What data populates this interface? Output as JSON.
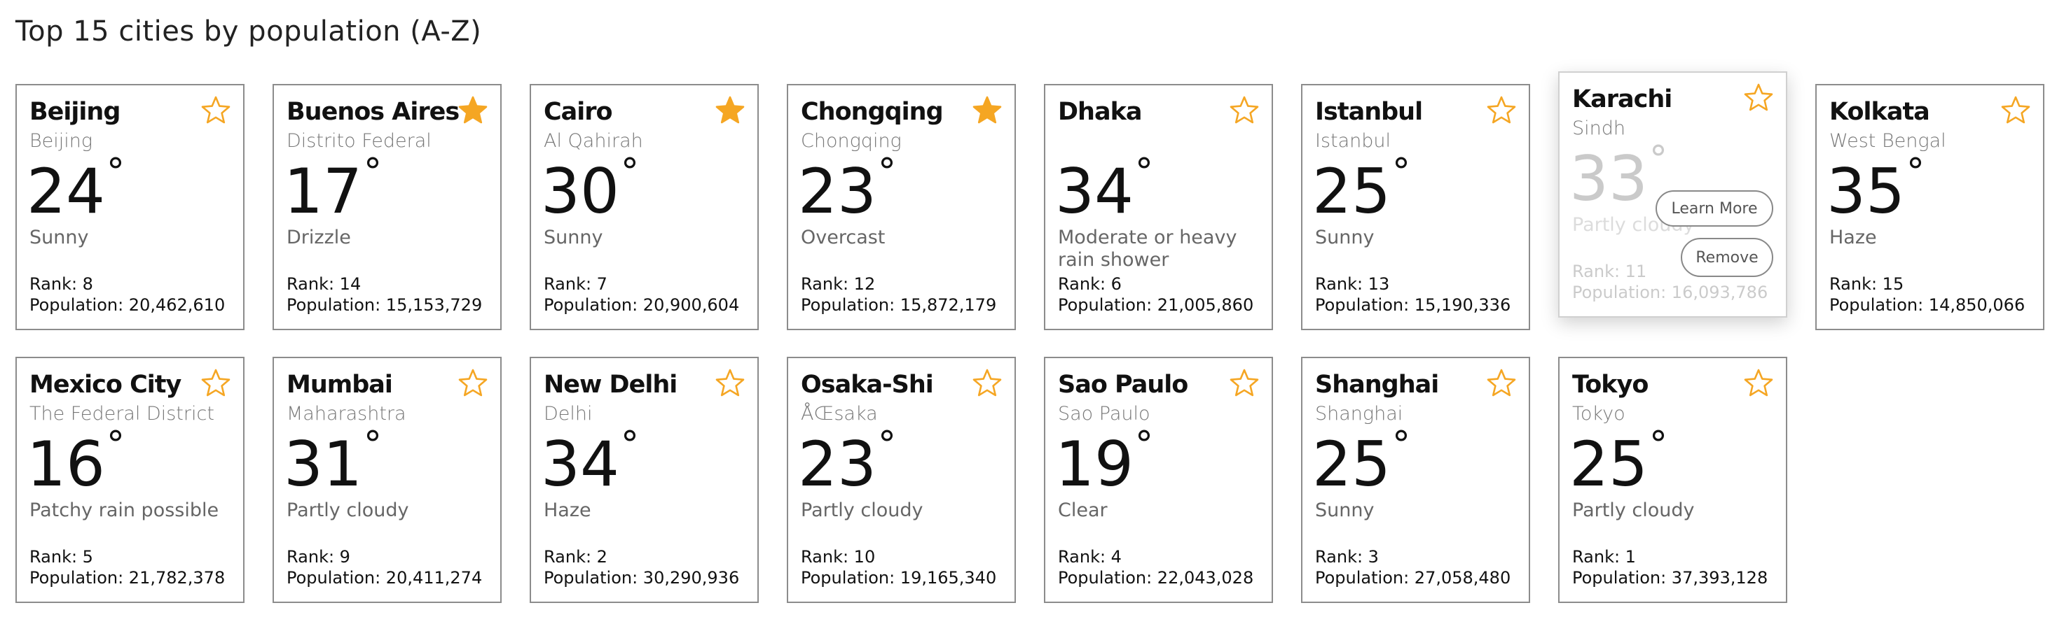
{
  "page": {
    "title": "Top 15 cities by population (A-Z)"
  },
  "colors": {
    "star": "#f5a623",
    "border": "#8c8c8c",
    "muted": "#777777"
  },
  "labels": {
    "rank_prefix": "Rank:",
    "population_prefix": "Population:",
    "degree": "°",
    "learn_more": "Learn More",
    "remove": "Remove"
  },
  "cities": [
    {
      "name": "Beijing",
      "region": "Beijing",
      "temp": "24",
      "condition": "Sunny",
      "rank": "Rank: 8",
      "population": "Population: 20,462,610",
      "favorite": false
    },
    {
      "name": "Buenos Aires",
      "region": "Distrito Federal",
      "temp": "17",
      "condition": "Drizzle",
      "rank": "Rank: 14",
      "population": "Population: 15,153,729",
      "favorite": true
    },
    {
      "name": "Cairo",
      "region": "Al Qahirah",
      "temp": "30",
      "condition": "Sunny",
      "rank": "Rank: 7",
      "population": "Population: 20,900,604",
      "favorite": true
    },
    {
      "name": "Chongqing",
      "region": "Chongqing",
      "temp": "23",
      "condition": "Overcast",
      "rank": "Rank: 12",
      "population": "Population: 15,872,179",
      "favorite": true
    },
    {
      "name": "Dhaka",
      "region": "",
      "temp": "34",
      "condition": "Moderate or heavy rain shower",
      "rank": "Rank: 6",
      "population": "Population: 21,005,860",
      "favorite": false
    },
    {
      "name": "Istanbul",
      "region": "Istanbul",
      "temp": "25",
      "condition": "Sunny",
      "rank": "Rank: 13",
      "population": "Population: 15,190,336",
      "favorite": false
    },
    {
      "name": "Karachi",
      "region": "Sindh",
      "temp": "33",
      "condition": "Partly cloudy",
      "rank": "Rank: 11",
      "population": "Population: 16,093,786",
      "favorite": false,
      "hovered": true
    },
    {
      "name": "Kolkata",
      "region": "West Bengal",
      "temp": "35",
      "condition": "Haze",
      "rank": "Rank: 15",
      "population": "Population: 14,850,066",
      "favorite": false
    },
    {
      "name": "Mexico City",
      "region": "The Federal District",
      "temp": "16",
      "condition": "Patchy rain possible",
      "rank": "Rank: 5",
      "population": "Population: 21,782,378",
      "favorite": false
    },
    {
      "name": "Mumbai",
      "region": "Maharashtra",
      "temp": "31",
      "condition": "Partly cloudy",
      "rank": "Rank: 9",
      "population": "Population: 20,411,274",
      "favorite": false
    },
    {
      "name": "New Delhi",
      "region": "Delhi",
      "temp": "34",
      "condition": "Haze",
      "rank": "Rank: 2",
      "population": "Population: 30,290,936",
      "favorite": false
    },
    {
      "name": "Osaka-Shi",
      "region": "ÅŒsaka",
      "temp": "23",
      "condition": "Partly cloudy",
      "rank": "Rank: 10",
      "population": "Population: 19,165,340",
      "favorite": false
    },
    {
      "name": "Sao Paulo",
      "region": "Sao Paulo",
      "temp": "19",
      "condition": "Clear",
      "rank": "Rank: 4",
      "population": "Population: 22,043,028",
      "favorite": false
    },
    {
      "name": "Shanghai",
      "region": "Shanghai",
      "temp": "25",
      "condition": "Sunny",
      "rank": "Rank: 3",
      "population": "Population: 27,058,480",
      "favorite": false
    },
    {
      "name": "Tokyo",
      "region": "Tokyo",
      "temp": "25",
      "condition": "Partly cloudy",
      "rank": "Rank: 1",
      "population": "Population: 37,393,128",
      "favorite": false
    }
  ]
}
